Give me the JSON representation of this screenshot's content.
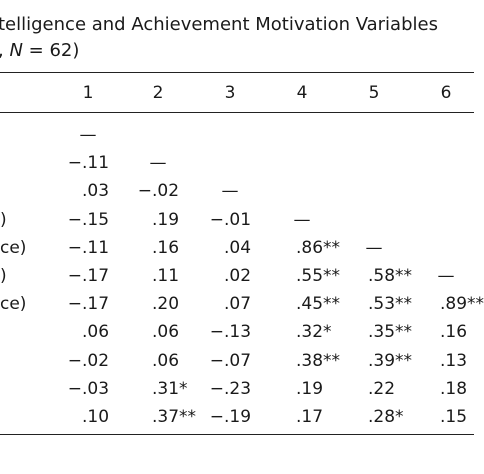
{
  "title": {
    "line1": "telligence and Achievement Motivation Variables",
    "line2_prefix": "",
    "line2_n": "N",
    "line2_rest": " = 62)",
    "line2_lead": ", "
  },
  "columns": [
    "1",
    "2",
    "3",
    "4",
    "5",
    "6"
  ],
  "rows": [
    {
      "label": "",
      "cells": [
        "—",
        "",
        "",
        "",
        "",
        ""
      ]
    },
    {
      "label": "",
      "cells": [
        "−.11",
        "—",
        "",
        "",
        "",
        ""
      ]
    },
    {
      "label": "",
      "cells": [
        ".03",
        "−.02",
        "—",
        "",
        "",
        ""
      ]
    },
    {
      "label": ")",
      "cells": [
        "−.15",
        ".19",
        "−.01",
        "—",
        "",
        ""
      ]
    },
    {
      "label": "ce)",
      "cells": [
        "−.11",
        ".16",
        ".04",
        ".86**",
        "—",
        ""
      ]
    },
    {
      "label": ")",
      "cells": [
        "−.17",
        ".11",
        ".02",
        ".55**",
        ".58**",
        "—"
      ]
    },
    {
      "label": "ce)",
      "cells": [
        "−.17",
        ".20",
        ".07",
        ".45**",
        ".53**",
        ".89**"
      ]
    },
    {
      "label": "",
      "cells": [
        ".06",
        ".06",
        "−.13",
        ".32*",
        ".35**",
        ".16"
      ]
    },
    {
      "label": "",
      "cells": [
        "−.02",
        ".06",
        "−.07",
        ".38**",
        ".39**",
        ".13"
      ]
    },
    {
      "label": "",
      "cells": [
        "−.03",
        ".31*",
        "−.23",
        ".19",
        ".22",
        ".18"
      ]
    },
    {
      "label": "",
      "cells": [
        ".10",
        ".37**",
        "−.19",
        ".17",
        ".28*",
        ".15"
      ]
    }
  ]
}
